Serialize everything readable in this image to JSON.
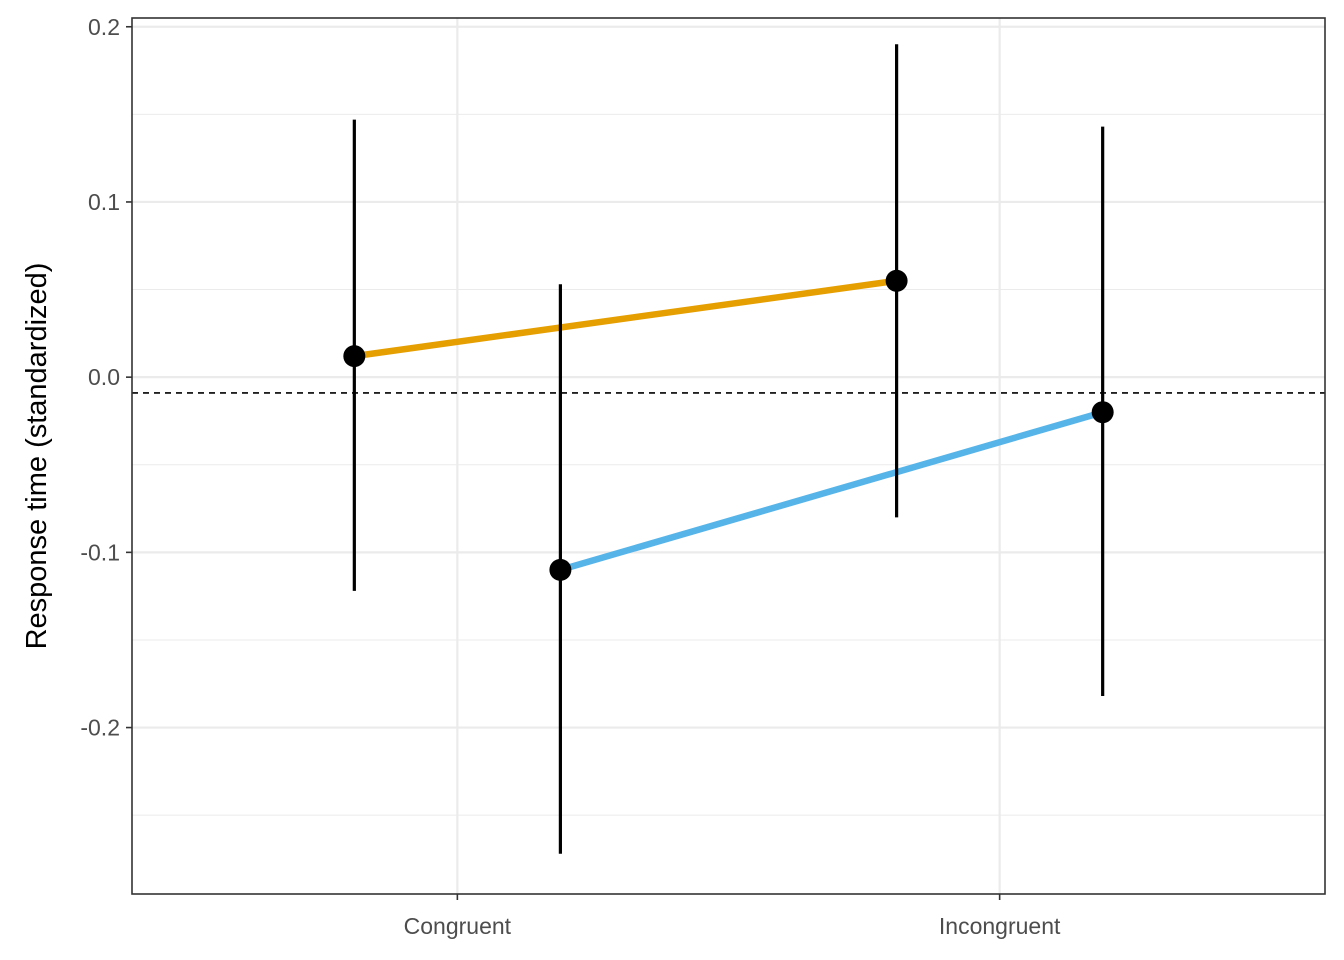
{
  "chart_data": {
    "type": "line",
    "title": "",
    "xlabel": "",
    "ylabel": "Response time (standardized)",
    "categories": [
      "Congruent",
      "Incongruent"
    ],
    "ylim": [
      -0.295,
      0.205
    ],
    "yticks": [
      0.2,
      0.1,
      0.0,
      -0.1,
      -0.2
    ],
    "ytick_labels": [
      "0.2",
      "0.1",
      "0.0",
      "-0.1",
      "-0.2"
    ],
    "grid": true,
    "legend": "none",
    "reference_line": {
      "y": -0.009,
      "style": "dashed",
      "color": "#000000"
    },
    "series": [
      {
        "color": "#E69F00",
        "x_offset": -0.19,
        "points": [
          {
            "category": "Congruent",
            "y": 0.012,
            "ymin": -0.122,
            "ymax": 0.147
          },
          {
            "category": "Incongruent",
            "y": 0.055,
            "ymin": -0.08,
            "ymax": 0.19
          }
        ]
      },
      {
        "color": "#56B4E9",
        "x_offset": 0.19,
        "points": [
          {
            "category": "Congruent",
            "y": -0.11,
            "ymin": -0.272,
            "ymax": 0.053
          },
          {
            "category": "Incongruent",
            "y": -0.02,
            "ymin": -0.182,
            "ymax": 0.143
          }
        ]
      }
    ]
  }
}
